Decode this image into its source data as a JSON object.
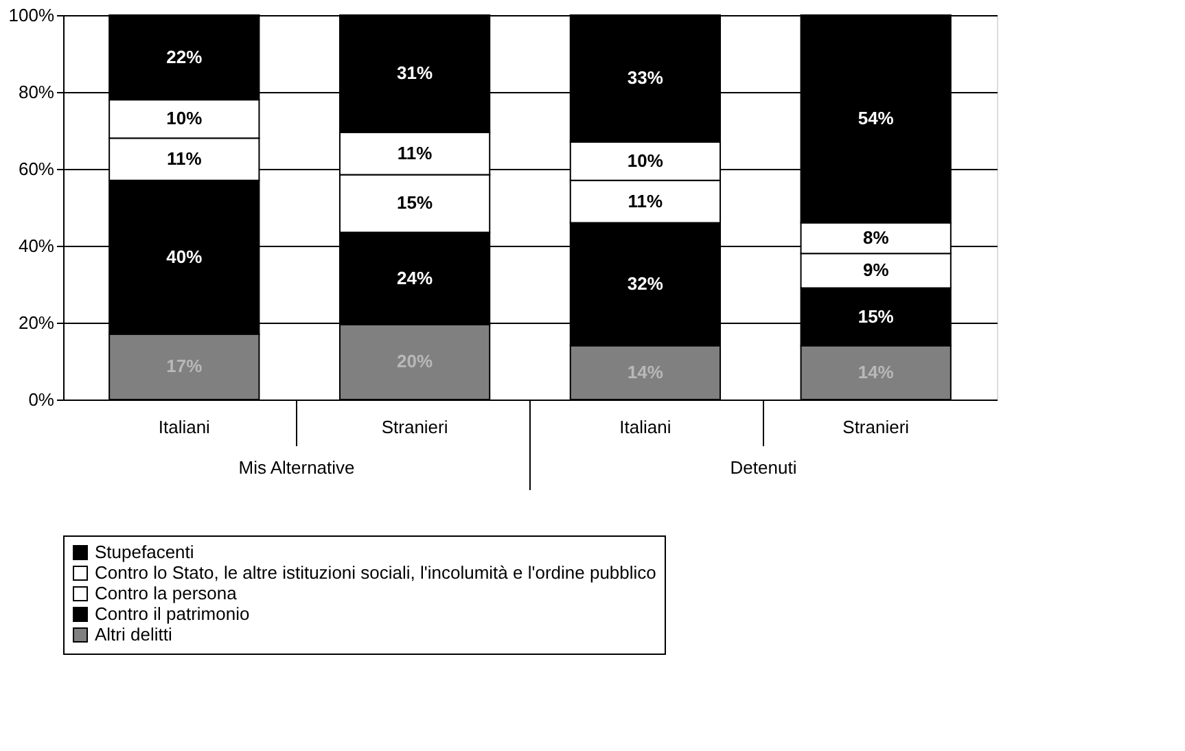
{
  "chart_data": {
    "type": "bar",
    "stacked": true,
    "categories": [
      "Italiani",
      "Stranieri",
      "Italiani",
      "Stranieri"
    ],
    "annotations": [
      "Mis Alternative",
      "Detenuti"
    ],
    "series": [
      {
        "name": "Altri delitti",
        "color": "#808080",
        "values": [
          17,
          19.5,
          14,
          14
        ],
        "value_labels": [
          "17%",
          "20%",
          "14%",
          "14%"
        ]
      },
      {
        "name": "Contro il patrimonio",
        "color": "#000000",
        "values": [
          40,
          24,
          32,
          15
        ],
        "value_labels": [
          "40%",
          "24%",
          "32%",
          "15%"
        ]
      },
      {
        "name": "Contro la persona",
        "color": "#ffffff",
        "values": [
          11,
          15,
          11,
          9
        ],
        "value_labels": [
          "11%",
          "15%",
          "11%",
          "9%"
        ]
      },
      {
        "name": "Contro lo Stato, le altre istituzioni sociali, l'incolumità e l'ordine pubblico",
        "color": "#ffffff",
        "values": [
          10,
          11,
          10,
          8
        ],
        "value_labels": [
          "10%",
          "11%",
          "10%",
          "8%"
        ]
      },
      {
        "name": "Stupefacenti",
        "color": "#000000",
        "values": [
          22,
          30.5,
          33,
          54
        ],
        "value_labels": [
          "22%",
          "31%",
          "33%",
          "54%"
        ]
      }
    ],
    "ylim": [
      0,
      100
    ],
    "yticks": [
      {
        "value": 0,
        "label": "0%"
      },
      {
        "value": 20,
        "label": "20%"
      },
      {
        "value": 40,
        "label": "40%"
      },
      {
        "value": 60,
        "label": "60%"
      },
      {
        "value": 80,
        "label": "80%"
      },
      {
        "value": 100,
        "label": "100%"
      }
    ],
    "grid": "y",
    "legend": "bottom"
  }
}
